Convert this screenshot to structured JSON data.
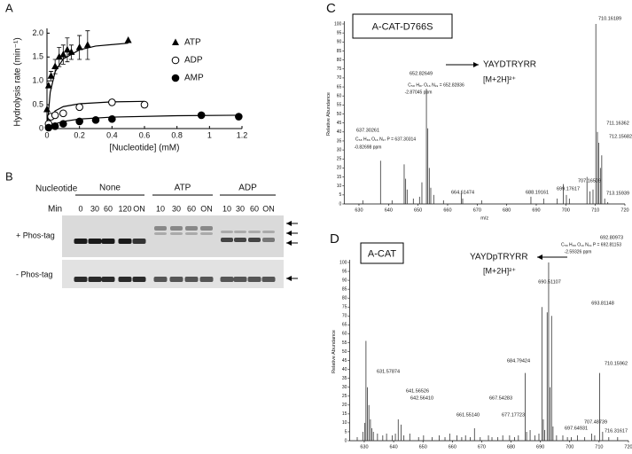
{
  "chart_data": [
    {
      "panel": "A",
      "type": "scatter",
      "y_label": "Hydrolysis rate (min⁻¹)",
      "x_label": "[Nucleotide] (mM)",
      "xlim": [
        0,
        1.2
      ],
      "ylim": [
        0,
        2.1
      ],
      "xticks": [
        0,
        0.2,
        0.4,
        0.6,
        0.8,
        1,
        1.2
      ],
      "yticks": [
        0,
        0.5,
        {
          "value": 1,
          "label": "1.0"
        },
        1.5,
        {
          "value": 2,
          "label": "2.0"
        }
      ],
      "legend": "upper right",
      "series": [
        {
          "name": "ATP",
          "marker": "triangle",
          "color": "#000000",
          "x": [
            0,
            0.01,
            0.025,
            0.05,
            0.075,
            0.1,
            0.125,
            0.15,
            0.2,
            0.25,
            0.5
          ],
          "values": [
            0.4,
            0.9,
            1.1,
            1.3,
            1.5,
            1.55,
            1.65,
            1.6,
            1.7,
            1.75,
            1.85
          ],
          "errors": [
            null,
            null,
            0.1,
            0.15,
            0.2,
            0.2,
            0.25,
            0.15,
            0.25,
            0.3,
            null
          ],
          "fit_x": [
            0,
            0.02,
            0.05,
            0.1,
            0.2,
            0.3,
            0.5
          ],
          "fit_values": [
            0,
            0.76,
            1.19,
            1.46,
            1.65,
            1.73,
            1.79
          ]
        },
        {
          "name": "ADP",
          "marker": "open-circle",
          "color": "#000000",
          "x": [
            0.01,
            0.025,
            0.05,
            0.1,
            0.2,
            0.4,
            0.6
          ],
          "values": [
            0.1,
            0.25,
            0.28,
            0.32,
            0.45,
            0.55,
            0.5
          ],
          "fit_x": [
            0.01,
            0.05,
            0.1,
            0.2,
            0.4,
            0.6
          ],
          "fit_values": [
            0.15,
            0.37,
            0.46,
            0.52,
            0.56,
            0.57
          ]
        },
        {
          "name": "AMP",
          "marker": "circle",
          "color": "#000000",
          "x": [
            0.01,
            0.05,
            0.1,
            0.2,
            0.3,
            0.4,
            0.95,
            1.18
          ],
          "values": [
            0.02,
            0.05,
            0.1,
            0.15,
            0.18,
            0.2,
            0.28,
            0.25
          ],
          "fit_x": [
            0,
            0.05,
            0.1,
            0.2,
            0.4,
            0.8,
            1.2
          ],
          "fit_values": [
            0,
            0.1,
            0.15,
            0.2,
            0.24,
            0.27,
            0.28
          ]
        }
      ]
    },
    {
      "panel": "C",
      "type": "stem",
      "title": "A-CAT-D766S",
      "y_label": "Relative Abundance",
      "x_label": "m/z",
      "xlim": [
        625,
        720
      ],
      "ylim": [
        0,
        100
      ],
      "xticks": [
        630,
        640,
        650,
        660,
        670,
        680,
        690,
        700,
        710,
        720
      ],
      "yticks": [
        0,
        5,
        10,
        15,
        20,
        25,
        30,
        35,
        40,
        45,
        50,
        55,
        60,
        65,
        70,
        75,
        80,
        85,
        90,
        95,
        100
      ],
      "x": [
        631.3,
        637.30261,
        641.2,
        645.3,
        645.8,
        646.3,
        648.4,
        650.5,
        651.3,
        652.82649,
        653.3,
        653.8,
        654.3,
        655.3,
        658.6,
        664.61474,
        665.1,
        671.5,
        688.19161,
        692.5,
        697.1,
        699.17617,
        700.2,
        701.2,
        707.16509,
        708.2,
        709.2,
        710.16189,
        710.7,
        711.16362,
        711.7,
        712.15682,
        713.15939,
        714.2
      ],
      "values": [
        2,
        24,
        2,
        22,
        14,
        8,
        3,
        4,
        12,
        64,
        42,
        20,
        9,
        5,
        2,
        6,
        3,
        2,
        4,
        3,
        3,
        11,
        5,
        3,
        15,
        7,
        8,
        100,
        40,
        34,
        20,
        27,
        3,
        1
      ],
      "annotations": [
        {
          "x": 637.30261,
          "label": "637.30261"
        },
        {
          "x": 652.82649,
          "label": "652.82649"
        },
        {
          "x": 664.61474,
          "label": "664.61474"
        },
        {
          "x": 688.19161,
          "label": "688.19161"
        },
        {
          "x": 699.17617,
          "label": "699.17617"
        },
        {
          "x": 707.16509,
          "label": "707.16509"
        },
        {
          "x": 710.16189,
          "label": "710.16189"
        },
        {
          "x": 711.16362,
          "label": "711.16362"
        },
        {
          "x": 712.15682,
          "label": "712.15682"
        },
        {
          "x": 713.15939,
          "label": "713.15939"
        }
      ],
      "notes": [
        "C₅₈ H₈₆ O₁₆ N₁₇ P = 637.30314",
        "-0.82698 ppm",
        "C₅₈ H₈₇ O₁₆ N₁₉ = 652.82836",
        "-2.87045 ppm",
        "YAYDTRYRR",
        "[M+2H]²⁺"
      ]
    },
    {
      "panel": "D",
      "type": "stem",
      "title": "A-CAT",
      "y_label": "Relative Abundance",
      "xlim": [
        625,
        720
      ],
      "ylim": [
        0,
        100
      ],
      "xticks": [
        630,
        640,
        650,
        660,
        670,
        680,
        690,
        700,
        710,
        720
      ],
      "yticks": [
        0,
        5,
        10,
        15,
        20,
        25,
        30,
        35,
        40,
        45,
        50,
        55,
        60,
        65,
        70,
        75,
        80,
        85,
        90,
        95,
        100
      ],
      "x": [
        627.6,
        629.5,
        630.2,
        630.58,
        631.08,
        631.57874,
        632.1,
        632.6,
        633.1,
        634.5,
        636.3,
        637.6,
        639.5,
        640.6,
        641.56526,
        642.5641,
        643.5,
        645.5,
        648.5,
        650.2,
        653.1,
        655.5,
        657.5,
        659.1,
        661.5514,
        663.2,
        664.5,
        666.1,
        667.54283,
        669.5,
        672.3,
        673.5,
        675.5,
        677.17723,
        679.5,
        681.2,
        682.5,
        684.79424,
        685.3,
        686.5,
        688.1,
        689.5,
        690.51107,
        691.0,
        691.5,
        692.3,
        692.80973,
        693.3,
        693.81148,
        694.3,
        695.5,
        697.64931,
        699.2,
        700.5,
        702.6,
        705.1,
        707.48739,
        708.5,
        710.15962,
        711.2,
        713.3,
        716.31617
      ],
      "values": [
        2,
        5,
        10,
        56,
        30,
        20,
        12,
        7,
        5,
        4,
        3,
        4,
        3,
        4,
        12,
        9,
        3,
        4,
        2,
        3,
        2,
        3,
        2,
        4,
        3,
        2,
        3,
        2,
        7,
        2,
        3,
        2,
        2,
        3,
        3,
        2,
        3,
        38,
        5,
        6,
        3,
        4,
        75,
        12,
        6,
        72,
        100,
        30,
        70,
        8,
        3,
        3,
        2,
        2,
        3,
        2,
        4,
        3,
        38,
        5,
        2,
        2
      ],
      "annotations": [
        {
          "x": 692.80973,
          "label": "692.80973"
        },
        {
          "x": 690.51107,
          "label": "690.51107"
        },
        {
          "x": 693.81148,
          "label": "693.81148"
        },
        {
          "x": 684.79424,
          "label": "684.79424"
        },
        {
          "x": 710.15962,
          "label": "710.15962"
        },
        {
          "x": 631.57874,
          "label": "631.57874"
        },
        {
          "x": 641.56526,
          "label": "641.56526"
        },
        {
          "x": 642.5641,
          "label": "642.56410"
        },
        {
          "x": 667.54283,
          "label": "667.54283"
        },
        {
          "x": 661.5514,
          "label": "661.55140"
        },
        {
          "x": 677.17723,
          "label": "677.17723"
        },
        {
          "x": 697.64931,
          "label": "697.64931"
        },
        {
          "x": 707.48739,
          "label": "707.48739"
        },
        {
          "x": 716.31617,
          "label": "716.31617"
        }
      ],
      "notes": [
        "C₅₈ H₈₈ O₁₉ N₁₉ P = 692.81153",
        "-2.59326 ppm",
        "YAYDpTRYRR",
        "[M+2H]²⁺"
      ]
    }
  ],
  "gel": {
    "panel": "B",
    "row_title": "Nucleotide",
    "groups": [
      "None",
      "ATP",
      "ADP"
    ],
    "time_title": "Min",
    "times": [
      "0",
      "30",
      "60",
      "120",
      "ON",
      "10",
      "30",
      "60",
      "ON",
      "10",
      "30",
      "60",
      "ON"
    ],
    "gel_labels": [
      "+ Phos-tag",
      "- Phos-tag"
    ]
  }
}
